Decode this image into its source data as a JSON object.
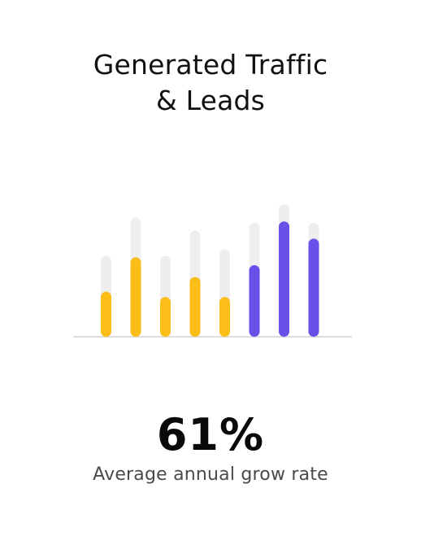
{
  "title": {
    "line1": "Generated Traffic",
    "line2": "& Leads"
  },
  "metric": {
    "value": "61%",
    "caption": "Average annual grow rate"
  },
  "chart_data": {
    "type": "bar",
    "title": "Generated Traffic & Leads",
    "xlabel": "",
    "ylabel": "",
    "ylim": [
      0,
      100
    ],
    "grid": false,
    "legend": "none",
    "colors": {
      "track": "#eeeeee",
      "yellow": "#fcbd18",
      "purple": "#6a50e8",
      "baseline": "#dddddd"
    },
    "series": [
      {
        "values": [
          34,
          60,
          30,
          45,
          30,
          54,
          87,
          74
        ],
        "colors": [
          "yellow",
          "yellow",
          "yellow",
          "yellow",
          "yellow",
          "purple",
          "purple",
          "purple"
        ]
      },
      {
        "values": [
          61,
          90,
          61,
          80,
          66,
          86,
          100,
          86
        ]
      }
    ]
  }
}
